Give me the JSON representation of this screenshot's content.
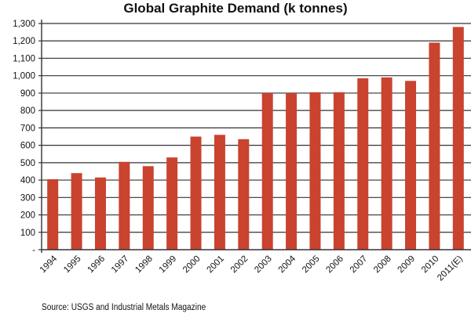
{
  "chart_data": {
    "type": "bar",
    "title": "Global Graphite Demand (k tonnes)",
    "xlabel": "",
    "ylabel": "",
    "categories": [
      "1994",
      "1995",
      "1996",
      "1997",
      "1998",
      "1999",
      "2000",
      "2001",
      "2002",
      "2003",
      "2004",
      "2005",
      "2006",
      "2007",
      "2008",
      "2009",
      "2010",
      "2011(E)"
    ],
    "values": [
      405,
      440,
      415,
      505,
      480,
      530,
      650,
      660,
      635,
      900,
      900,
      905,
      905,
      985,
      990,
      970,
      1190,
      1280
    ],
    "ylim": [
      0,
      1300
    ],
    "yticks": [
      0,
      100,
      200,
      300,
      400,
      500,
      600,
      700,
      800,
      900,
      1000,
      1100,
      1200,
      1300
    ],
    "ytick_labels": [
      "-",
      "100",
      "200",
      "300",
      "400",
      "500",
      "600",
      "700",
      "800",
      "900",
      "1,000",
      "1,100",
      "1,200",
      "1,300"
    ],
    "grid": true,
    "bar_color": "#c9432f",
    "source": "Source: USGS and Industrial Metals Magazine"
  }
}
